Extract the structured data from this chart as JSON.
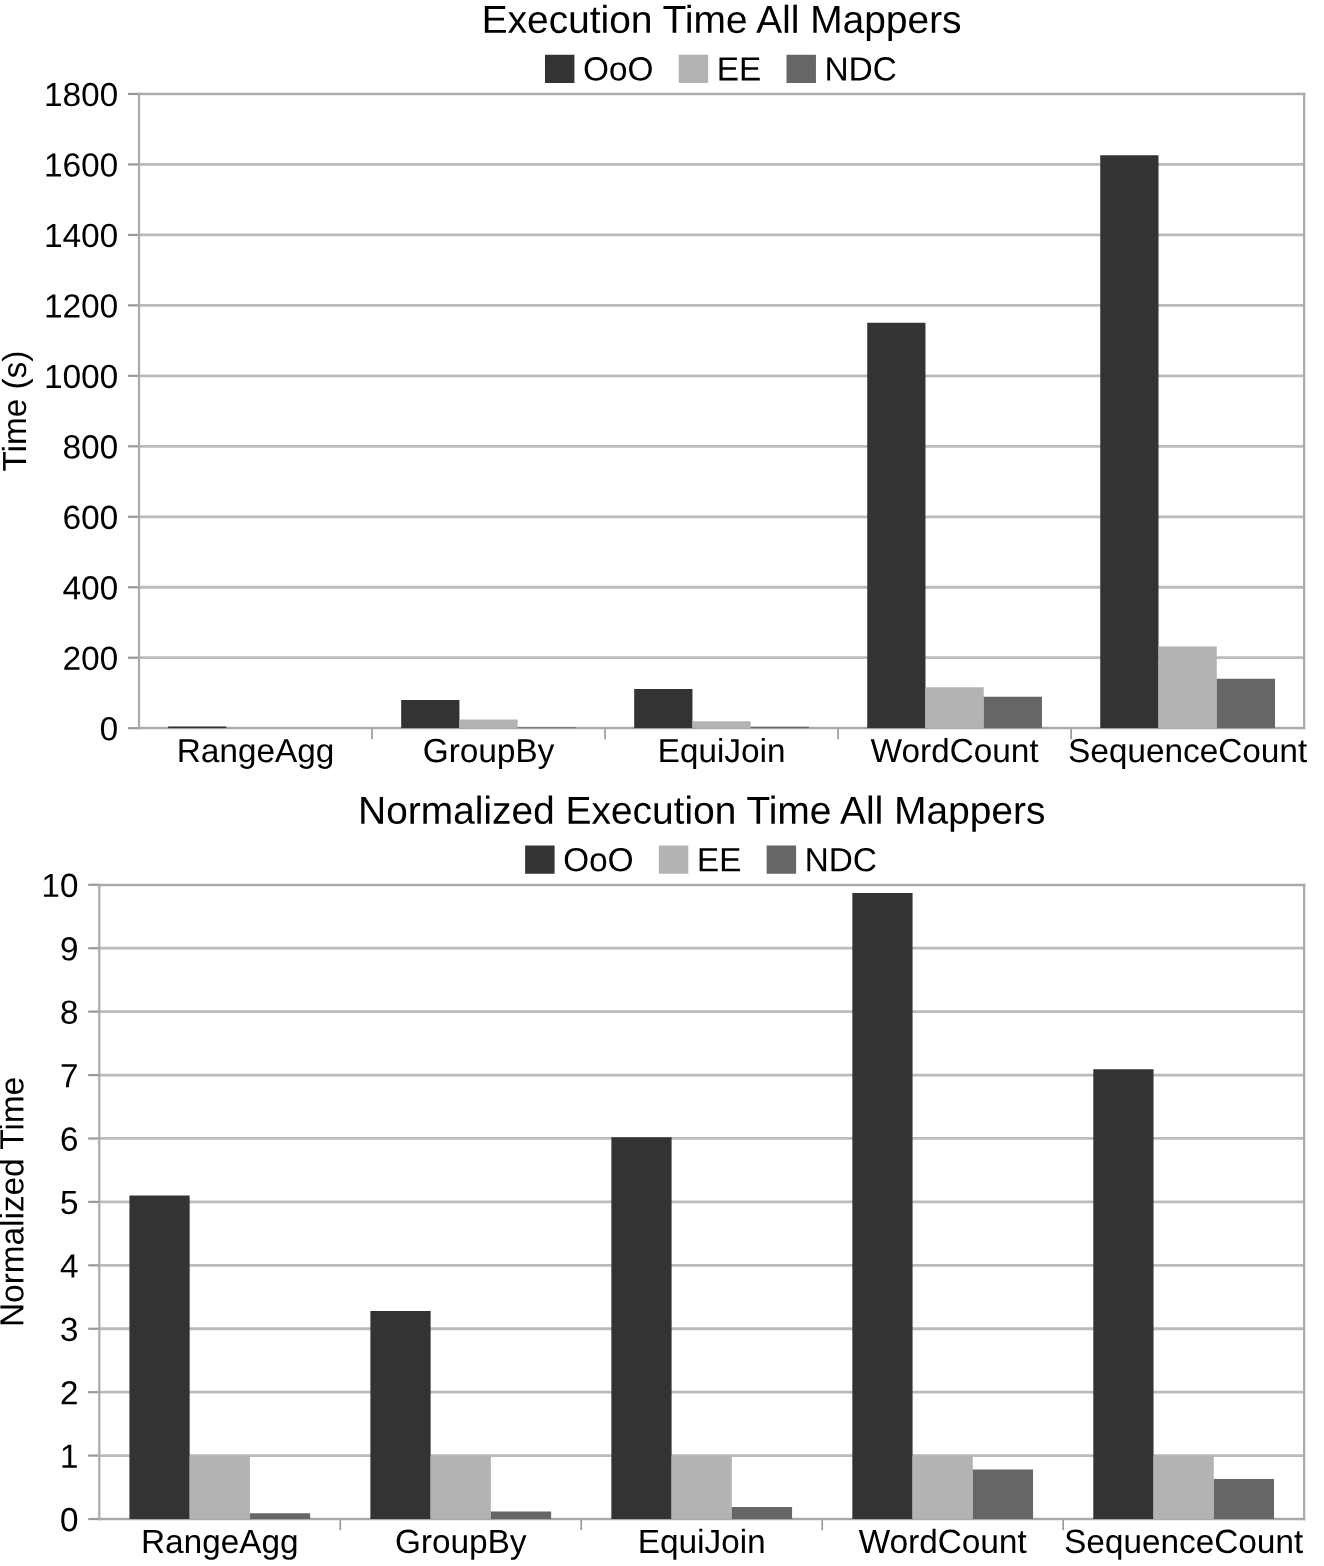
{
  "chart_data": [
    {
      "type": "bar",
      "title": "Execution Time All Mappers",
      "ylabel": "Time (s)",
      "categories": [
        "RangeAgg",
        "GroupBy",
        "EquiJoin",
        "WordCount",
        "SequenceCount"
      ],
      "series": [
        {
          "name": "OoO",
          "color": "#333333",
          "values": [
            5,
            80,
            111,
            1151,
            1626
          ]
        },
        {
          "name": "EE",
          "color": "#b3b3b3",
          "values": [
            null,
            25,
            20,
            116,
            232
          ]
        },
        {
          "name": "NDC",
          "color": "#666666",
          "values": [
            null,
            3,
            4,
            89,
            140
          ]
        }
      ],
      "ylim": [
        0,
        1800
      ],
      "yticks": [
        0,
        200,
        400,
        600,
        800,
        1000,
        1200,
        1400,
        1600,
        1800
      ],
      "grid": "y",
      "legend": "top"
    },
    {
      "type": "bar",
      "title": "Normalized Execution Time All Mappers",
      "ylabel": "Normalized Time",
      "categories": [
        "RangeAgg",
        "GroupBy",
        "EquiJoin",
        "WordCount",
        "SequenceCount"
      ],
      "series": [
        {
          "name": "OoO",
          "color": "#333333",
          "values": [
            5.1,
            3.28,
            6.02,
            9.87,
            7.09
          ]
        },
        {
          "name": "EE",
          "color": "#b3b3b3",
          "values": [
            1,
            1,
            1,
            1,
            1
          ]
        },
        {
          "name": "NDC",
          "color": "#666666",
          "values": [
            0.09,
            0.12,
            0.19,
            0.78,
            0.63
          ]
        }
      ],
      "ylim": [
        0,
        10
      ],
      "yticks": [
        0,
        1,
        2,
        3,
        4,
        5,
        6,
        7,
        8,
        9,
        10
      ],
      "grid": "y",
      "legend": "top"
    }
  ]
}
